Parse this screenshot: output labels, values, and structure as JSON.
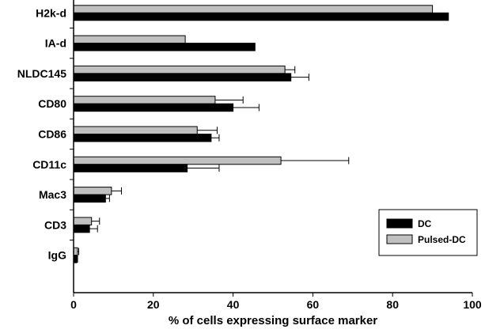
{
  "chart_data": {
    "type": "bar",
    "orientation": "horizontal",
    "categories": [
      "H2k-d",
      "IA-d",
      "NLDC145",
      "CD80",
      "CD86",
      "CD11c",
      "Mac3",
      "CD3",
      "IgG"
    ],
    "series": [
      {
        "name": "Pulsed-DC",
        "color": "#c0c0c0",
        "values": [
          90,
          28,
          53,
          35.5,
          31,
          52,
          9.5,
          4.5,
          1
        ],
        "errors": [
          0,
          0,
          2.5,
          7,
          5,
          17,
          2.5,
          2,
          0.3
        ]
      },
      {
        "name": "DC",
        "color": "#000000",
        "values": [
          94,
          45.5,
          54.5,
          40,
          34.5,
          28.5,
          8,
          4,
          0.8
        ],
        "errors": [
          0,
          0,
          4.5,
          6.5,
          2,
          8,
          1,
          2,
          0.2
        ]
      }
    ],
    "xlabel": "% of cells expressing surface marker",
    "ylabel": "",
    "xlim": [
      0,
      100
    ],
    "xticks": [
      "0",
      "20",
      "40",
      "60",
      "80",
      "100"
    ],
    "grid": false,
    "legend_position": "bottom-right"
  }
}
